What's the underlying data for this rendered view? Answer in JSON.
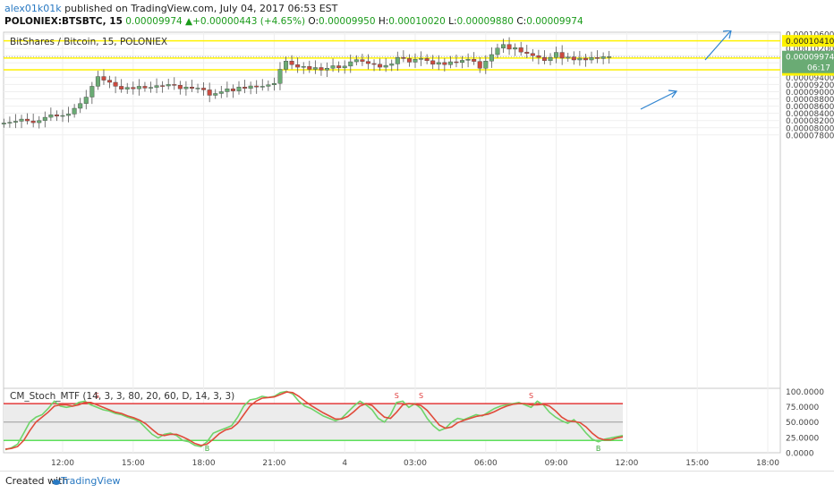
{
  "header": {
    "author": "alex01k01k",
    "published": "published on TradingView.com, July 04, 2017 06:53 EST",
    "symbol": "POLONIEX:BTSBTC, 15",
    "price": "0.00009974",
    "change": "+0.00000443 (+4.65%)",
    "o_label": "O:",
    "o_value": "0.00009950",
    "h_label": "H:",
    "h_value": "0.00010020",
    "l_label": "L:",
    "l_value": "0.00009880",
    "c_label": "C:",
    "c_value": "0.00009974"
  },
  "footer": {
    "created_with": "Created with",
    "brand": "TradingView"
  },
  "colors": {
    "bull": "#6aab74",
    "bear": "#cc4a3f",
    "level": "#fff200",
    "arrow": "#2f84d0",
    "stoch_k": "#6fd46a",
    "stoch_d": "#e04b3a",
    "band_upper": "#e33a3a",
    "band_lower": "#5ee05a",
    "band_fill": "#ececec",
    "current_price_bg": "#6aab74"
  },
  "chart_data": [
    {
      "type": "candlestick",
      "title": "BitShares / Bitcoin, 15, POLONIEX",
      "ylim": [
        7.7e-06,
        0.0001065
      ],
      "y_ticks": [
        "0.00010600",
        "0.00010200",
        "0.00010000",
        "0.00009800",
        "0.00009600",
        "0.00009400",
        "0.00009200",
        "0.00009000",
        "0.00008800",
        "0.00008600",
        "0.00008400",
        "0.00008200",
        "0.00008000",
        "0.00007800"
      ],
      "y_tick_values": [
        0.000106,
        0.000102,
        0.0001,
        9.8e-05,
        9.6e-05,
        9.4e-05,
        9.2e-05,
        9e-05,
        8.8e-05,
        8.6e-05,
        8.4e-05,
        8.2e-05,
        8e-05,
        7.8e-05
      ],
      "x_ticks": [
        "12:00",
        "15:00",
        "18:00",
        "21:00",
        "4",
        "03:00",
        "06:00",
        "09:00",
        "12:00",
        "15:00",
        "18:00"
      ],
      "x_tick_hours": [
        12,
        15,
        18,
        21,
        24,
        27,
        30,
        33,
        36,
        39,
        42
      ],
      "levels": [
        {
          "label": "0.00010410",
          "value": 0.0001041
        },
        {
          "label": "0.00009933",
          "value": 9.933e-05
        },
        {
          "label": "0.00009606",
          "value": 9.606e-05
        }
      ],
      "current_price": {
        "label": "0.00009974",
        "countdown": "06:17",
        "value": 9.974e-05
      },
      "closes": [
        8.13e-05,
        8.15e-05,
        8.18e-05,
        8.24e-05,
        8.19e-05,
        8.14e-05,
        8.2e-05,
        8.29e-05,
        8.36e-05,
        8.32e-05,
        8.34e-05,
        8.38e-05,
        8.54e-05,
        8.67e-05,
        8.85e-05,
        9.15e-05,
        9.42e-05,
        9.32e-05,
        9.26e-05,
        9.15e-05,
        9.07e-05,
        9.12e-05,
        9.08e-05,
        9.15e-05,
        9.1e-05,
        9.12e-05,
        9.17e-05,
        9.16e-05,
        9.2e-05,
        9.18e-05,
        9.08e-05,
        9.13e-05,
        9.09e-05,
        9.1e-05,
        9.05e-05,
        8.9e-05,
        8.95e-05,
        9e-05,
        9.08e-05,
        9.02e-05,
        9.13e-05,
        9.09e-05,
        9.16e-05,
        9.13e-05,
        9.15e-05,
        9.19e-05,
        9.23e-05,
        9.62e-05,
        9.85e-05,
        9.75e-05,
        9.68e-05,
        9.7e-05,
        9.62e-05,
        9.67e-05,
        9.6e-05,
        9.65e-05,
        9.72e-05,
        9.66e-05,
        9.71e-05,
        9.83e-05,
        9.89e-05,
        9.84e-05,
        9.78e-05,
        9.76e-05,
        9.68e-05,
        9.73e-05,
        9.77e-05,
        9.95e-05,
        9.92e-05,
        9.82e-05,
        9.9e-05,
        9.92e-05,
        9.86e-05,
        9.76e-05,
        9.81e-05,
        9.75e-05,
        9.83e-05,
        9.81e-05,
        9.87e-05,
        9.9e-05,
        9.84e-05,
        9.65e-05,
        9.85e-05,
        0.0001003,
        0.0001021,
        0.0001031,
        0.0001018,
        0.0001022,
        0.000101,
        0.0001006,
        0.0001,
        9.95e-05,
        9.86e-05,
        9.95e-05,
        0.0001009,
        9.93e-05,
        9.96e-05,
        9.88e-05,
        9.93e-05,
        9.88e-05,
        9.95e-05,
        9.92e-05,
        9.97e-05,
        9.97e-05
      ],
      "candle_interval_minutes": 15,
      "start_hour": 9.5
    },
    {
      "type": "line",
      "title": "CM_Stoch_MTF (14, 3, 3, 80, 20, 60, D, 14, 3, 3)",
      "ylim": [
        0,
        105
      ],
      "y_ticks": [
        "100.0000",
        "75.0000",
        "50.0000",
        "25.0000",
        "0.0000"
      ],
      "y_tick_values": [
        100,
        75,
        50,
        25,
        0
      ],
      "bands": {
        "upper": 80,
        "middle": 50,
        "lower": 20
      },
      "series": [
        {
          "role": "k",
          "values": [
            5,
            8,
            14,
            32,
            50,
            58,
            62,
            72,
            84,
            76,
            74,
            76,
            82,
            84,
            78,
            74,
            70,
            68,
            64,
            62,
            58,
            55,
            50,
            40,
            30,
            24,
            30,
            32,
            28,
            20,
            18,
            12,
            10,
            18,
            32,
            36,
            40,
            44,
            58,
            76,
            86,
            88,
            92,
            90,
            92,
            98,
            100,
            96,
            84,
            76,
            72,
            66,
            60,
            56,
            52,
            56,
            66,
            76,
            84,
            78,
            70,
            56,
            50,
            62,
            82,
            84,
            74,
            80,
            72,
            56,
            44,
            36,
            40,
            50,
            56,
            54,
            58,
            62,
            60,
            66,
            72,
            76,
            78,
            80,
            82,
            78,
            74,
            84,
            78,
            66,
            58,
            52,
            48,
            54,
            44,
            32,
            22,
            18,
            22,
            24,
            26,
            28
          ]
        },
        {
          "role": "d",
          "values": [
            6,
            7,
            10,
            20,
            36,
            50,
            58,
            66,
            76,
            78,
            78,
            76,
            78,
            82,
            82,
            78,
            74,
            70,
            66,
            64,
            60,
            57,
            53,
            47,
            38,
            30,
            28,
            30,
            30,
            26,
            21,
            15,
            12,
            14,
            22,
            31,
            37,
            40,
            48,
            62,
            76,
            84,
            89,
            90,
            91,
            95,
            99,
            98,
            92,
            84,
            77,
            71,
            65,
            60,
            55,
            55,
            59,
            67,
            76,
            80,
            77,
            67,
            58,
            56,
            66,
            78,
            80,
            79,
            77,
            69,
            57,
            45,
            40,
            42,
            49,
            53,
            56,
            59,
            61,
            63,
            67,
            72,
            76,
            79,
            80,
            80,
            78,
            78,
            79,
            76,
            68,
            58,
            52,
            51,
            49,
            42,
            32,
            24,
            21,
            21,
            24,
            26
          ]
        }
      ],
      "annotations": [
        {
          "text": "S",
          "index": 15
        },
        {
          "text": "S",
          "index": 64
        },
        {
          "text": "S",
          "index": 68
        },
        {
          "text": "S",
          "index": 86
        },
        {
          "text": "B",
          "index": 33
        },
        {
          "text": "B",
          "index": 97
        }
      ]
    }
  ]
}
